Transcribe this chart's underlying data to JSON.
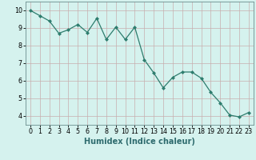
{
  "x": [
    0,
    1,
    2,
    3,
    4,
    5,
    6,
    7,
    8,
    9,
    10,
    11,
    12,
    13,
    14,
    15,
    16,
    17,
    18,
    19,
    20,
    21,
    22,
    23
  ],
  "y": [
    10.0,
    9.7,
    9.4,
    8.7,
    8.9,
    9.2,
    8.75,
    9.55,
    8.35,
    9.05,
    8.35,
    9.05,
    7.2,
    6.45,
    5.6,
    6.2,
    6.5,
    6.5,
    6.15,
    5.35,
    4.75,
    4.05,
    3.95,
    4.2
  ],
  "xlabel": "Humidex (Indice chaleur)",
  "xlim": [
    -0.5,
    23.5
  ],
  "ylim": [
    3.5,
    10.5
  ],
  "yticks": [
    4,
    5,
    6,
    7,
    8,
    9,
    10
  ],
  "xticks": [
    0,
    1,
    2,
    3,
    4,
    5,
    6,
    7,
    8,
    9,
    10,
    11,
    12,
    13,
    14,
    15,
    16,
    17,
    18,
    19,
    20,
    21,
    22,
    23
  ],
  "line_color": "#2e7d6e",
  "marker_color": "#2e7d6e",
  "bg_color": "#d5f2ee",
  "grid_color": "#c8aeae",
  "spine_color": "#6b8e8e",
  "label_fontsize": 7,
  "tick_fontsize": 5.8
}
